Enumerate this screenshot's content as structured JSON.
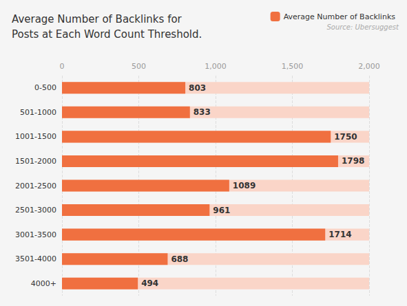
{
  "chart_data": {
    "type": "bar",
    "orientation": "horizontal",
    "title": "Average Number of Backlinks for\nPosts at Each Word Count Threshold.",
    "annotations": [
      "Source: Ubersuggest"
    ],
    "categories": [
      "0-500",
      "501-1000",
      "1001-1500",
      "1501-2000",
      "2001-2500",
      "2501-3000",
      "3001-3500",
      "3501-4000",
      "4000+"
    ],
    "series": [
      {
        "name": "Average Number of Backlinks",
        "color": "#F07040",
        "values": [
          803,
          833,
          1750,
          1798,
          1089,
          961,
          1714,
          688,
          494
        ]
      }
    ],
    "xlim": [
      0,
      2000
    ],
    "xticks": [
      0,
      500,
      1000,
      1500,
      2000
    ],
    "grid": true,
    "legend": "top right",
    "data_labels": true
  }
}
